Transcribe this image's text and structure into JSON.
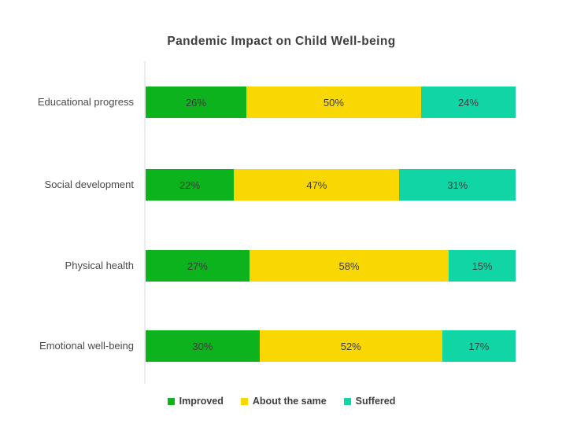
{
  "colors": {
    "background": "#ffffff",
    "text": "#3f3f3f",
    "category_label": "#4a4a4a",
    "axis_line": "#ececec"
  },
  "chart_data": {
    "type": "bar",
    "orientation": "horizontal",
    "stacked": true,
    "title": "Pandemic Impact on Child Well-being",
    "categories": [
      "Educational progress",
      "Social development",
      "Physical health",
      "Emotional well-being"
    ],
    "series": [
      {
        "name": "Improved",
        "color": "#0db31c",
        "values": [
          26,
          22,
          27,
          30
        ]
      },
      {
        "name": "About the same",
        "color": "#f8d800",
        "values": [
          50,
          47,
          58,
          52
        ]
      },
      {
        "name": "Suffered",
        "color": "#10d6a5",
        "values": [
          24,
          31,
          15,
          17
        ]
      }
    ],
    "value_suffix": "%",
    "xlim": [
      0,
      100
    ],
    "grid": false,
    "legend_position": "bottom",
    "bar_value_labels": [
      "26%",
      "50%",
      "24%",
      "22%",
      "47%",
      "31%",
      "27%",
      "58%",
      "15%",
      "30%",
      "52%",
      "17%"
    ]
  }
}
